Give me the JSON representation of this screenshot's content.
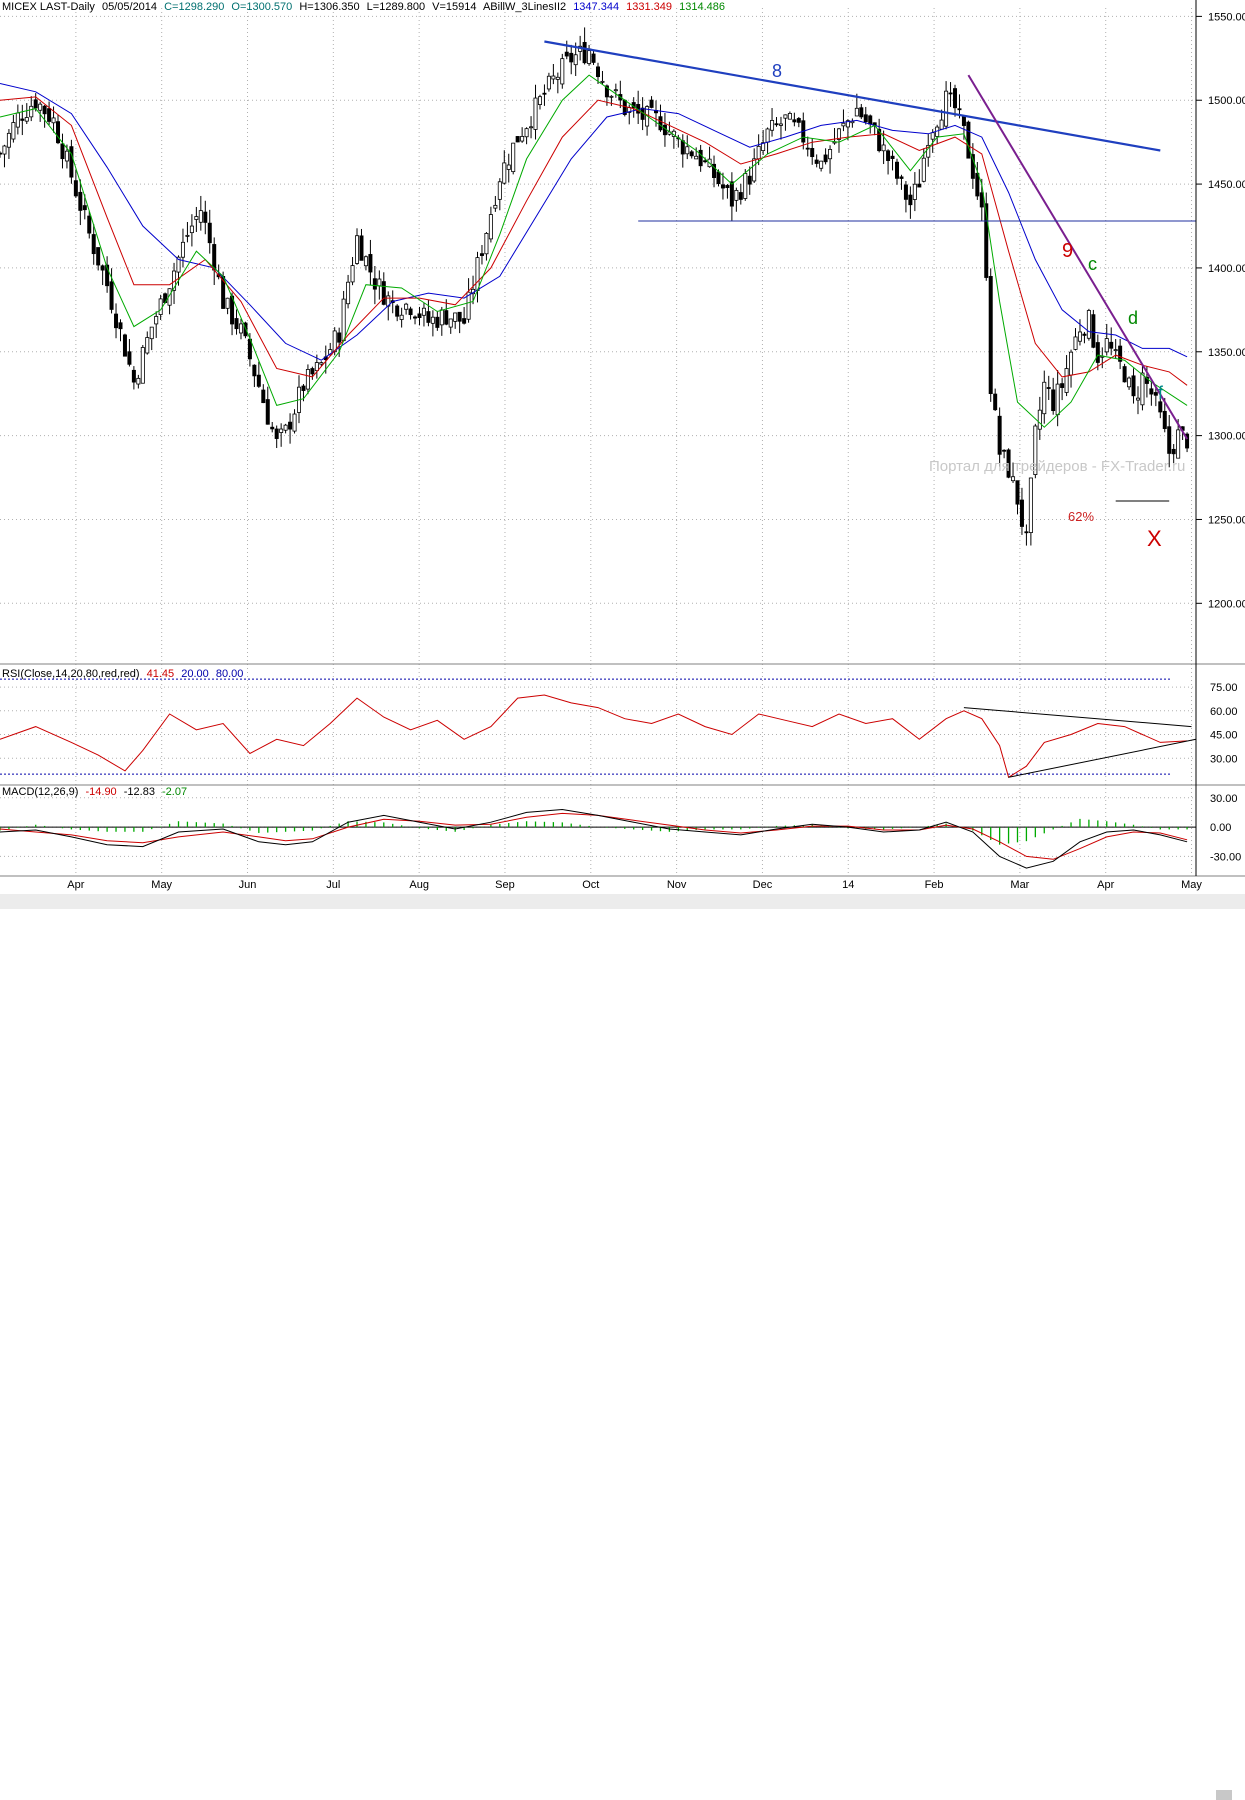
{
  "header": {
    "symbol": "MICEX LAST-Daily",
    "date": "05/05/2014",
    "close": "C=1298.290",
    "open": "O=1300.570",
    "high": "H=1306.350",
    "low": "L=1289.800",
    "volume": "V=15914",
    "indicator": "ABillW_3LinesII2",
    "ind_v1": "1347.344",
    "ind_v2": "1331.349",
    "ind_v3": "1314.486"
  },
  "rsi_header": {
    "name": "RSI(Close,14,20,80,red,red)",
    "value": "41.45",
    "low": "20.00",
    "high": "80.00"
  },
  "macd_header": {
    "name": "MACD(12,26,9)",
    "v1": "-14.90",
    "v2": "-12.83",
    "v3": "-2.07"
  },
  "colors": {
    "ma_fast": "#00aa00",
    "ma_mid": "#cc0000",
    "ma_slow": "#0000cc",
    "trendline_top": "#1f3fbf",
    "trendline_purple": "#7a1f8f",
    "rsi": "#cc0000",
    "macd": "#000000",
    "signal": "#cc0000",
    "hist": "#00aa00",
    "grid": "#b0b0b0"
  },
  "annotations": {
    "wave8": "8",
    "wave9": "9",
    "c": "c",
    "d": "d",
    "f": "f",
    "x": "X",
    "fib": "62%",
    "watermark": "Портал для трейдеров - FX-Trader.ru"
  },
  "chart_data": [
    {
      "type": "candlestick",
      "title": "MICEX LAST-Daily",
      "ylim": [
        1165,
        1555
      ],
      "y_ticks": [
        1200,
        1250,
        1300,
        1350,
        1400,
        1450,
        1500,
        1550
      ],
      "y_tick_labels": [
        "1200.00",
        "1250.00",
        "1300.00",
        "1350.00",
        "1400.00",
        "1450.00",
        "1500.00",
        "1550.00"
      ],
      "x_months": [
        "Apr",
        "May",
        "Jun",
        "Jul",
        "Aug",
        "Sep",
        "Oct",
        "Nov",
        "Dec",
        "14",
        "Feb",
        "Mar",
        "Apr",
        "May"
      ],
      "close_path": [
        [
          0,
          1468
        ],
        [
          4,
          1490
        ],
        [
          8,
          1500
        ],
        [
          12,
          1488
        ],
        [
          16,
          1455
        ],
        [
          20,
          1420
        ],
        [
          24,
          1390
        ],
        [
          28,
          1352
        ],
        [
          30,
          1332
        ],
        [
          34,
          1365
        ],
        [
          38,
          1392
        ],
        [
          42,
          1420
        ],
        [
          45,
          1435
        ],
        [
          48,
          1405
        ],
        [
          50,
          1380
        ],
        [
          54,
          1362
        ],
        [
          58,
          1330
        ],
        [
          60,
          1312
        ],
        [
          62,
          1295
        ],
        [
          64,
          1302
        ],
        [
          68,
          1330
        ],
        [
          72,
          1342
        ],
        [
          76,
          1362
        ],
        [
          78,
          1392
        ],
        [
          80,
          1418
        ],
        [
          84,
          1392
        ],
        [
          88,
          1378
        ],
        [
          92,
          1378
        ],
        [
          96,
          1368
        ],
        [
          100,
          1372
        ],
        [
          104,
          1368
        ],
        [
          108,
          1412
        ],
        [
          112,
          1455
        ],
        [
          116,
          1478
        ],
        [
          120,
          1495
        ],
        [
          124,
          1512
        ],
        [
          128,
          1525
        ],
        [
          132,
          1530
        ],
        [
          136,
          1508
        ],
        [
          140,
          1495
        ],
        [
          144,
          1490
        ],
        [
          148,
          1488
        ],
        [
          152,
          1475
        ],
        [
          156,
          1468
        ],
        [
          160,
          1455
        ],
        [
          164,
          1440
        ],
        [
          168,
          1455
        ],
        [
          172,
          1480
        ],
        [
          176,
          1488
        ],
        [
          180,
          1478
        ],
        [
          184,
          1462
        ],
        [
          188,
          1480
        ],
        [
          192,
          1495
        ],
        [
          196,
          1480
        ],
        [
          200,
          1460
        ],
        [
          202,
          1448
        ],
        [
          204,
          1438
        ],
        [
          206,
          1452
        ],
        [
          208,
          1480
        ],
        [
          210,
          1490
        ],
        [
          212,
          1500
        ],
        [
          214,
          1495
        ],
        [
          216,
          1480
        ],
        [
          218,
          1458
        ],
        [
          220,
          1432
        ],
        [
          221,
          1400
        ],
        [
          222,
          1330
        ],
        [
          224,
          1290
        ],
        [
          226,
          1280
        ],
        [
          228,
          1262
        ],
        [
          230,
          1236
        ],
        [
          232,
          1300
        ],
        [
          234,
          1330
        ],
        [
          236,
          1320
        ],
        [
          238,
          1330
        ],
        [
          240,
          1350
        ],
        [
          242,
          1365
        ],
        [
          244,
          1368
        ],
        [
          246,
          1348
        ],
        [
          248,
          1355
        ],
        [
          250,
          1345
        ],
        [
          252,
          1338
        ],
        [
          254,
          1320
        ],
        [
          256,
          1335
        ],
        [
          258,
          1325
        ],
        [
          260,
          1310
        ],
        [
          262,
          1290
        ],
        [
          264,
          1300
        ],
        [
          266,
          1298
        ]
      ],
      "ma_fast_path": [
        [
          0,
          1490
        ],
        [
          8,
          1495
        ],
        [
          16,
          1468
        ],
        [
          24,
          1400
        ],
        [
          30,
          1365
        ],
        [
          36,
          1375
        ],
        [
          44,
          1410
        ],
        [
          50,
          1395
        ],
        [
          56,
          1358
        ],
        [
          62,
          1318
        ],
        [
          68,
          1322
        ],
        [
          76,
          1350
        ],
        [
          82,
          1390
        ],
        [
          90,
          1388
        ],
        [
          98,
          1374
        ],
        [
          106,
          1380
        ],
        [
          112,
          1420
        ],
        [
          118,
          1465
        ],
        [
          126,
          1500
        ],
        [
          132,
          1515
        ],
        [
          140,
          1500
        ],
        [
          148,
          1485
        ],
        [
          156,
          1470
        ],
        [
          164,
          1450
        ],
        [
          172,
          1468
        ],
        [
          180,
          1478
        ],
        [
          188,
          1475
        ],
        [
          196,
          1485
        ],
        [
          204,
          1458
        ],
        [
          210,
          1478
        ],
        [
          216,
          1480
        ],
        [
          220,
          1450
        ],
        [
          224,
          1380
        ],
        [
          228,
          1320
        ],
        [
          234,
          1305
        ],
        [
          240,
          1320
        ],
        [
          246,
          1348
        ],
        [
          252,
          1345
        ],
        [
          258,
          1332
        ],
        [
          266,
          1318
        ]
      ],
      "ma_mid_path": [
        [
          0,
          1500
        ],
        [
          8,
          1502
        ],
        [
          16,
          1485
        ],
        [
          24,
          1430
        ],
        [
          30,
          1390
        ],
        [
          38,
          1390
        ],
        [
          46,
          1405
        ],
        [
          54,
          1380
        ],
        [
          62,
          1340
        ],
        [
          70,
          1335
        ],
        [
          78,
          1360
        ],
        [
          86,
          1382
        ],
        [
          94,
          1382
        ],
        [
          102,
          1378
        ],
        [
          110,
          1400
        ],
        [
          118,
          1440
        ],
        [
          126,
          1478
        ],
        [
          134,
          1500
        ],
        [
          142,
          1495
        ],
        [
          150,
          1485
        ],
        [
          158,
          1475
        ],
        [
          166,
          1462
        ],
        [
          174,
          1468
        ],
        [
          182,
          1475
        ],
        [
          190,
          1478
        ],
        [
          198,
          1480
        ],
        [
          206,
          1470
        ],
        [
          214,
          1478
        ],
        [
          220,
          1468
        ],
        [
          226,
          1410
        ],
        [
          232,
          1355
        ],
        [
          238,
          1335
        ],
        [
          244,
          1338
        ],
        [
          250,
          1348
        ],
        [
          256,
          1342
        ],
        [
          262,
          1338
        ],
        [
          266,
          1330
        ]
      ],
      "ma_slow_path": [
        [
          0,
          1510
        ],
        [
          8,
          1505
        ],
        [
          16,
          1492
        ],
        [
          24,
          1460
        ],
        [
          32,
          1425
        ],
        [
          40,
          1405
        ],
        [
          48,
          1400
        ],
        [
          56,
          1378
        ],
        [
          64,
          1355
        ],
        [
          72,
          1345
        ],
        [
          80,
          1360
        ],
        [
          88,
          1380
        ],
        [
          96,
          1385
        ],
        [
          104,
          1382
        ],
        [
          112,
          1395
        ],
        [
          120,
          1430
        ],
        [
          128,
          1465
        ],
        [
          136,
          1490
        ],
        [
          144,
          1495
        ],
        [
          152,
          1492
        ],
        [
          160,
          1482
        ],
        [
          168,
          1472
        ],
        [
          176,
          1478
        ],
        [
          184,
          1485
        ],
        [
          192,
          1488
        ],
        [
          200,
          1482
        ],
        [
          208,
          1480
        ],
        [
          214,
          1485
        ],
        [
          220,
          1478
        ],
        [
          226,
          1445
        ],
        [
          232,
          1405
        ],
        [
          238,
          1375
        ],
        [
          244,
          1362
        ],
        [
          250,
          1360
        ],
        [
          256,
          1352
        ],
        [
          262,
          1352
        ],
        [
          266,
          1347
        ]
      ],
      "trendline_top": [
        [
          122,
          1535
        ],
        [
          260,
          1470
        ]
      ],
      "trendline_purple": [
        [
          217,
          1515
        ],
        [
          266,
          1298
        ]
      ],
      "support_line": [
        [
          143,
          1428
        ],
        [
          268,
          1428
        ]
      ],
      "fib_line": [
        [
          250,
          1261
        ],
        [
          262,
          1261
        ]
      ]
    },
    {
      "type": "line",
      "title": "RSI(Close,14,20,80,red,red)",
      "ylim": [
        15,
        82
      ],
      "y_ticks": [
        30,
        45,
        60,
        75
      ],
      "y_tick_labels": [
        "30.00",
        "45.00",
        "60.00",
        "75.00"
      ],
      "levels": [
        20,
        80
      ],
      "path": [
        [
          0,
          42
        ],
        [
          8,
          50
        ],
        [
          16,
          40
        ],
        [
          22,
          32
        ],
        [
          28,
          22
        ],
        [
          32,
          35
        ],
        [
          38,
          58
        ],
        [
          44,
          48
        ],
        [
          50,
          52
        ],
        [
          56,
          33
        ],
        [
          62,
          42
        ],
        [
          68,
          38
        ],
        [
          74,
          52
        ],
        [
          80,
          68
        ],
        [
          86,
          56
        ],
        [
          92,
          48
        ],
        [
          98,
          54
        ],
        [
          104,
          42
        ],
        [
          110,
          50
        ],
        [
          116,
          68
        ],
        [
          122,
          70
        ],
        [
          128,
          65
        ],
        [
          134,
          62
        ],
        [
          140,
          55
        ],
        [
          146,
          52
        ],
        [
          152,
          58
        ],
        [
          158,
          50
        ],
        [
          164,
          45
        ],
        [
          170,
          58
        ],
        [
          176,
          54
        ],
        [
          182,
          50
        ],
        [
          188,
          58
        ],
        [
          194,
          52
        ],
        [
          200,
          55
        ],
        [
          206,
          42
        ],
        [
          212,
          55
        ],
        [
          216,
          60
        ],
        [
          220,
          55
        ],
        [
          224,
          38
        ],
        [
          226,
          18
        ],
        [
          230,
          25
        ],
        [
          234,
          40
        ],
        [
          240,
          45
        ],
        [
          246,
          52
        ],
        [
          252,
          50
        ],
        [
          256,
          45
        ],
        [
          260,
          40
        ],
        [
          266,
          41
        ]
      ],
      "trend_upper": [
        [
          216,
          62
        ],
        [
          267,
          50
        ]
      ],
      "trend_lower": [
        [
          226,
          18
        ],
        [
          268,
          42
        ]
      ]
    },
    {
      "type": "line",
      "title": "MACD(12,26,9)",
      "ylim": [
        -48,
        40
      ],
      "y_ticks": [
        -30,
        0,
        30
      ],
      "y_tick_labels": [
        "-30.00",
        "0.00",
        "30.00"
      ],
      "macd_path": [
        [
          0,
          -5
        ],
        [
          8,
          -3
        ],
        [
          16,
          -10
        ],
        [
          24,
          -18
        ],
        [
          32,
          -20
        ],
        [
          40,
          -5
        ],
        [
          50,
          -2
        ],
        [
          58,
          -15
        ],
        [
          64,
          -18
        ],
        [
          70,
          -15
        ],
        [
          78,
          5
        ],
        [
          86,
          12
        ],
        [
          94,
          5
        ],
        [
          102,
          -2
        ],
        [
          110,
          5
        ],
        [
          118,
          15
        ],
        [
          126,
          18
        ],
        [
          134,
          12
        ],
        [
          142,
          5
        ],
        [
          150,
          -2
        ],
        [
          158,
          -5
        ],
        [
          166,
          -8
        ],
        [
          174,
          -2
        ],
        [
          182,
          3
        ],
        [
          190,
          0
        ],
        [
          198,
          -5
        ],
        [
          206,
          -3
        ],
        [
          212,
          5
        ],
        [
          218,
          -5
        ],
        [
          224,
          -30
        ],
        [
          230,
          -42
        ],
        [
          236,
          -35
        ],
        [
          242,
          -15
        ],
        [
          248,
          -5
        ],
        [
          254,
          -3
        ],
        [
          260,
          -8
        ],
        [
          266,
          -15
        ]
      ],
      "signal_path": [
        [
          0,
          -2
        ],
        [
          8,
          -5
        ],
        [
          16,
          -8
        ],
        [
          24,
          -14
        ],
        [
          32,
          -16
        ],
        [
          40,
          -10
        ],
        [
          50,
          -5
        ],
        [
          58,
          -10
        ],
        [
          64,
          -14
        ],
        [
          70,
          -12
        ],
        [
          78,
          0
        ],
        [
          86,
          8
        ],
        [
          94,
          6
        ],
        [
          102,
          2
        ],
        [
          110,
          3
        ],
        [
          118,
          10
        ],
        [
          126,
          14
        ],
        [
          134,
          12
        ],
        [
          142,
          7
        ],
        [
          150,
          2
        ],
        [
          158,
          -3
        ],
        [
          166,
          -6
        ],
        [
          174,
          -3
        ],
        [
          182,
          1
        ],
        [
          190,
          1
        ],
        [
          198,
          -3
        ],
        [
          206,
          -3
        ],
        [
          212,
          2
        ],
        [
          218,
          -2
        ],
        [
          224,
          -15
        ],
        [
          230,
          -30
        ],
        [
          236,
          -33
        ],
        [
          242,
          -22
        ],
        [
          248,
          -10
        ],
        [
          254,
          -5
        ],
        [
          260,
          -6
        ],
        [
          266,
          -13
        ]
      ]
    }
  ]
}
